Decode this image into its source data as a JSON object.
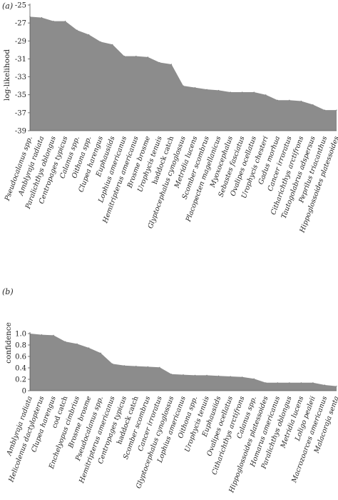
{
  "chart_data": [
    {
      "type": "area",
      "panel_label": "(a)",
      "title": "",
      "xlabel": "",
      "ylabel": "log-likelihood",
      "ylim": [
        -39,
        -25
      ],
      "yticks": [
        "-25",
        "-27",
        "-29",
        "-31",
        "-33",
        "-35",
        "-37",
        "-39"
      ],
      "categories": [
        "Pseudocalanus spp.",
        "Amblyraja radiata",
        "Paralichthys oblongus",
        "Centropages typicus",
        "Calanus spp.",
        "Oithona spp.",
        "Clupea harengus",
        "Euphausiids",
        "Lophius americanus",
        "Hemitripterus americanus",
        "Brosme brosme",
        "Urophycis tenuis",
        "haddock catch",
        "Glyptocephalus cynoglossus",
        "Metridia lucens",
        "Scomber scombrus",
        "Placopecten magellanicus",
        "Myoxocephalus",
        "Sebastes fasciatus",
        "Ovalipes ocellatus",
        "Urophycis chesteri",
        "Gadus morhua",
        "Cancer irroratus",
        "Citharichthys arctifrons",
        "Tautogolabrus adspersus",
        "Peprilus triacanthus",
        "Hippoglossoides platessoides"
      ],
      "upright_categories": [
        "haddock catch"
      ],
      "values": [
        -26.3,
        -26.4,
        -26.8,
        -26.8,
        -27.8,
        -28.3,
        -29.1,
        -29.4,
        -30.7,
        -30.7,
        -30.8,
        -31.4,
        -31.6,
        -34.0,
        -34.2,
        -34.4,
        -34.5,
        -34.7,
        -34.7,
        -34.7,
        -35.0,
        -35.6,
        -35.6,
        -35.7,
        -36.1,
        -36.7,
        -36.7
      ]
    },
    {
      "type": "area",
      "panel_label": "(b)",
      "title": "",
      "xlabel": "",
      "ylabel": "confidence",
      "ylim": [
        0,
        1.0
      ],
      "yticks": [
        "0",
        "0.2",
        "0.4",
        "0.6",
        "0.8",
        "1.0"
      ],
      "categories": [
        "Amblyraja radiata",
        "Helicolenus dactylopterus",
        "Clupea harengus",
        "cod catch",
        "Enchelyopus cimbrius",
        "Brosme brosme",
        "Pseudocalanus spp.",
        "Hemitripterus americanus",
        "Centropages typicus",
        "haddock catch",
        "Scomber scombrus",
        "Cancer irroratus",
        "Glyptocephalus cynoglossus",
        "Lophius americanus",
        "Oithona spp.",
        "Urophycis tenuis",
        "Euphausiids",
        "Ovalipes ocellatus",
        "Citharichthys arctifrons",
        "Calanus spp.",
        "Hippoglossoides platessoides",
        "Homarus americanus",
        "Paralichthys oblongus",
        "Metridia lucens",
        "Loligo pealeii",
        "Macrozoarces americanus",
        "Malacoraja senta"
      ],
      "upright_categories": [
        "cod catch",
        "haddock catch"
      ],
      "values": [
        1.0,
        0.98,
        0.97,
        0.86,
        0.82,
        0.75,
        0.66,
        0.47,
        0.44,
        0.43,
        0.42,
        0.41,
        0.29,
        0.28,
        0.27,
        0.27,
        0.26,
        0.25,
        0.24,
        0.21,
        0.14,
        0.14,
        0.14,
        0.14,
        0.14,
        0.1,
        0.08
      ]
    }
  ]
}
